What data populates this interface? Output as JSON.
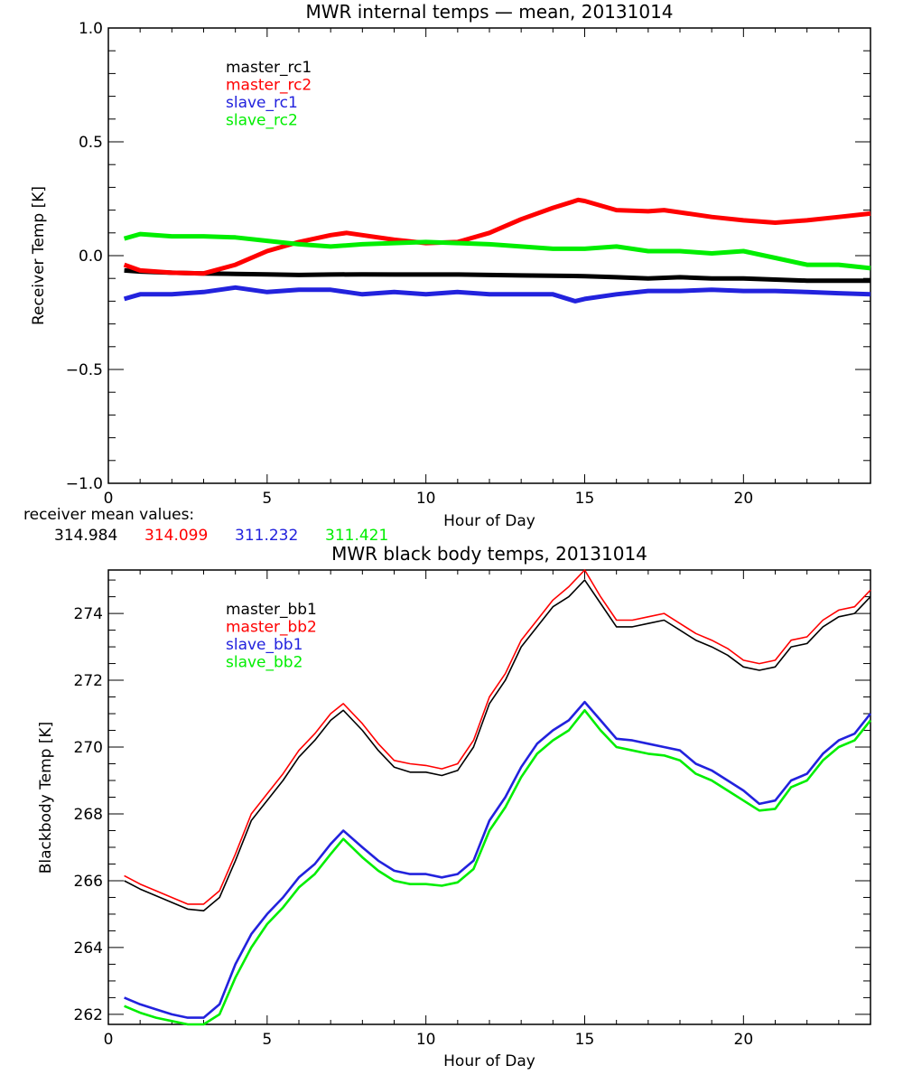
{
  "chart_data": [
    {
      "type": "line",
      "title": "MWR internal temps — mean, 20131014",
      "xlabel": "Hour of Day",
      "ylabel": "Receiver Temp [K]",
      "xlim": [
        0,
        24
      ],
      "ylim": [
        -1.0,
        1.0
      ],
      "xticks": [
        0,
        5,
        10,
        15,
        20
      ],
      "xtick_labels": [
        "0",
        "5",
        "10",
        "15",
        "20"
      ],
      "yticks": [
        1.0,
        0.5,
        0.0,
        -0.5,
        -1.0
      ],
      "ytick_labels": [
        "1.0",
        "0.5",
        "0.0",
        "−0.5",
        "−1.0"
      ],
      "legend_placement": "top-left",
      "grid": false,
      "series": [
        {
          "name": "master_rc1",
          "color": "#000000",
          "x": [
            0.5,
            1,
            2,
            3,
            4,
            5,
            6,
            7,
            8,
            9,
            10,
            11,
            12,
            13,
            14,
            15,
            16,
            17,
            18,
            19,
            20,
            21,
            22,
            23,
            24
          ],
          "y": [
            -0.065,
            -0.07,
            -0.075,
            -0.078,
            -0.08,
            -0.082,
            -0.085,
            -0.083,
            -0.082,
            -0.083,
            -0.083,
            -0.083,
            -0.085,
            -0.087,
            -0.088,
            -0.09,
            -0.095,
            -0.1,
            -0.095,
            -0.1,
            -0.1,
            -0.105,
            -0.11,
            -0.11,
            -0.11
          ]
        },
        {
          "name": "master_rc2",
          "color": "#ff0000",
          "x": [
            0.5,
            1,
            2,
            3,
            4,
            5,
            6,
            7,
            7.5,
            8,
            9,
            10,
            11,
            12,
            13,
            14,
            14.8,
            15,
            16,
            17,
            17.5,
            18,
            19,
            20,
            21,
            22,
            23,
            24
          ],
          "y": [
            -0.04,
            -0.065,
            -0.075,
            -0.078,
            -0.04,
            0.02,
            0.06,
            0.09,
            0.1,
            0.09,
            0.07,
            0.055,
            0.06,
            0.1,
            0.16,
            0.21,
            0.245,
            0.24,
            0.2,
            0.195,
            0.2,
            0.19,
            0.17,
            0.155,
            0.145,
            0.155,
            0.17,
            0.185
          ]
        },
        {
          "name": "slave_rc1",
          "color": "#2222dd",
          "x": [
            0.5,
            1,
            2,
            3,
            4,
            5,
            6,
            7,
            8,
            9,
            10,
            11,
            12,
            13,
            14,
            14.7,
            15,
            16,
            17,
            18,
            19,
            20,
            21,
            22,
            23,
            24
          ],
          "y": [
            -0.19,
            -0.17,
            -0.17,
            -0.16,
            -0.14,
            -0.16,
            -0.15,
            -0.15,
            -0.17,
            -0.16,
            -0.17,
            -0.16,
            -0.17,
            -0.17,
            -0.17,
            -0.2,
            -0.19,
            -0.17,
            -0.155,
            -0.155,
            -0.15,
            -0.155,
            -0.155,
            -0.16,
            -0.165,
            -0.17
          ]
        },
        {
          "name": "slave_rc2",
          "color": "#00ee00",
          "x": [
            0.5,
            1,
            2,
            3,
            4,
            5,
            6,
            7,
            8,
            9,
            10,
            11,
            12,
            13,
            14,
            15,
            16,
            17,
            18,
            19,
            20,
            21,
            22,
            23,
            24
          ],
          "y": [
            0.075,
            0.095,
            0.085,
            0.085,
            0.08,
            0.065,
            0.05,
            0.04,
            0.05,
            0.055,
            0.06,
            0.055,
            0.05,
            0.04,
            0.03,
            0.03,
            0.04,
            0.02,
            0.02,
            0.01,
            0.02,
            -0.01,
            -0.04,
            -0.04,
            -0.055
          ]
        }
      ]
    },
    {
      "type": "line",
      "title": "MWR black body temps, 20131014",
      "xlabel": "Hour of Day",
      "ylabel": "Blackbody Temp [K]",
      "xlim": [
        0,
        24
      ],
      "ylim": [
        261.7,
        275.3
      ],
      "xticks": [
        0,
        5,
        10,
        15,
        20
      ],
      "xtick_labels": [
        "0",
        "5",
        "10",
        "15",
        "20"
      ],
      "yticks": [
        262,
        264,
        266,
        268,
        270,
        272,
        274
      ],
      "ytick_labels": [
        "262",
        "264",
        "266",
        "268",
        "270",
        "272",
        "274"
      ],
      "legend_placement": "top-left",
      "grid": false,
      "series": [
        {
          "name": "master_bb1",
          "color": "#000000",
          "x": [
            0.5,
            1,
            1.5,
            2,
            2.5,
            3,
            3.5,
            4,
            4.5,
            5,
            5.5,
            6,
            6.5,
            7,
            7.4,
            8,
            8.5,
            9,
            9.5,
            10,
            10.5,
            11,
            11.5,
            12,
            12.5,
            13,
            13.5,
            14,
            14.5,
            15,
            15.5,
            16,
            16.5,
            17,
            17.5,
            18,
            18.5,
            19,
            19.5,
            20,
            20.5,
            21,
            21.5,
            22,
            22.5,
            23,
            23.5,
            24
          ],
          "y": [
            266.0,
            265.75,
            265.55,
            265.35,
            265.15,
            265.1,
            265.5,
            266.6,
            267.8,
            268.4,
            269.0,
            269.7,
            270.2,
            270.8,
            271.1,
            270.5,
            269.9,
            269.4,
            269.25,
            269.25,
            269.15,
            269.3,
            270.0,
            271.3,
            272.0,
            273.0,
            273.6,
            274.2,
            274.5,
            275.0,
            274.3,
            273.6,
            273.6,
            273.7,
            273.8,
            273.5,
            273.2,
            273.0,
            272.75,
            272.4,
            272.3,
            272.4,
            273.0,
            273.1,
            273.6,
            273.9,
            274.0,
            274.5
          ]
        },
        {
          "name": "master_bb2",
          "color": "#ff0000",
          "x": [
            0.5,
            1,
            1.5,
            2,
            2.5,
            3,
            3.5,
            4,
            4.5,
            5,
            5.5,
            6,
            6.5,
            7,
            7.4,
            8,
            8.5,
            9,
            9.5,
            10,
            10.5,
            11,
            11.5,
            12,
            12.5,
            13,
            13.5,
            14,
            14.5,
            15,
            15.5,
            16,
            16.5,
            17,
            17.5,
            18,
            18.5,
            19,
            19.5,
            20,
            20.5,
            21,
            21.5,
            22,
            22.5,
            23,
            23.5,
            24
          ],
          "y": [
            266.15,
            265.9,
            265.7,
            265.5,
            265.3,
            265.3,
            265.7,
            266.8,
            268.0,
            268.6,
            269.2,
            269.9,
            270.4,
            271.0,
            271.3,
            270.7,
            270.1,
            269.6,
            269.5,
            269.45,
            269.35,
            269.5,
            270.2,
            271.5,
            272.2,
            273.2,
            273.8,
            274.4,
            274.8,
            275.3,
            274.5,
            273.8,
            273.8,
            273.9,
            274.0,
            273.7,
            273.4,
            273.2,
            272.95,
            272.6,
            272.5,
            272.6,
            273.2,
            273.3,
            273.8,
            274.1,
            274.2,
            274.7
          ]
        },
        {
          "name": "slave_bb1",
          "color": "#2222dd",
          "x": [
            0.5,
            1,
            1.5,
            2,
            2.5,
            3,
            3.5,
            4,
            4.5,
            5,
            5.5,
            6,
            6.5,
            7,
            7.4,
            8,
            8.5,
            9,
            9.5,
            10,
            10.5,
            11,
            11.5,
            12,
            12.5,
            13,
            13.5,
            14,
            14.5,
            15,
            15.5,
            16,
            16.5,
            17,
            17.5,
            18,
            18.5,
            19,
            19.5,
            20,
            20.5,
            21,
            21.5,
            22,
            22.5,
            23,
            23.5,
            24
          ],
          "y": [
            262.5,
            262.3,
            262.15,
            262.0,
            261.9,
            261.9,
            262.3,
            263.5,
            264.4,
            265.0,
            265.5,
            266.1,
            266.5,
            267.1,
            267.5,
            267.0,
            266.6,
            266.3,
            266.2,
            266.2,
            266.1,
            266.2,
            266.6,
            267.8,
            268.5,
            269.4,
            270.1,
            270.5,
            270.8,
            271.35,
            270.8,
            270.25,
            270.2,
            270.1,
            270.0,
            269.9,
            269.5,
            269.3,
            269.0,
            268.7,
            268.3,
            268.4,
            269.0,
            269.2,
            269.8,
            270.2,
            270.4,
            271.0
          ]
        },
        {
          "name": "slave_bb2",
          "color": "#00ee00",
          "x": [
            0.5,
            1,
            1.5,
            2,
            2.5,
            3,
            3.5,
            4,
            4.5,
            5,
            5.5,
            6,
            6.5,
            7,
            7.4,
            8,
            8.5,
            9,
            9.5,
            10,
            10.5,
            11,
            11.5,
            12,
            12.5,
            13,
            13.5,
            14,
            14.5,
            15,
            15.5,
            16,
            16.5,
            17,
            17.5,
            18,
            18.5,
            19,
            19.5,
            20,
            20.5,
            21,
            21.5,
            22,
            22.5,
            23,
            23.5,
            24
          ],
          "y": [
            262.25,
            262.05,
            261.9,
            261.8,
            261.7,
            261.7,
            262.0,
            263.1,
            264.0,
            264.7,
            265.2,
            265.8,
            266.2,
            266.8,
            267.25,
            266.7,
            266.3,
            266.0,
            265.9,
            265.9,
            265.85,
            265.95,
            266.35,
            267.5,
            268.2,
            269.1,
            269.8,
            270.2,
            270.5,
            271.1,
            270.5,
            270.0,
            269.9,
            269.8,
            269.75,
            269.6,
            269.2,
            269.0,
            268.7,
            268.4,
            268.1,
            268.15,
            268.8,
            269.0,
            269.6,
            270.0,
            270.2,
            270.8
          ]
        }
      ]
    }
  ],
  "receiver_means": {
    "label": "receiver mean values:",
    "values": [
      {
        "text": "314.984",
        "color": "#000000"
      },
      {
        "text": "314.099",
        "color": "#ff0000"
      },
      {
        "text": "311.232",
        "color": "#2222dd"
      },
      {
        "text": "311.421",
        "color": "#00ee00"
      }
    ]
  }
}
